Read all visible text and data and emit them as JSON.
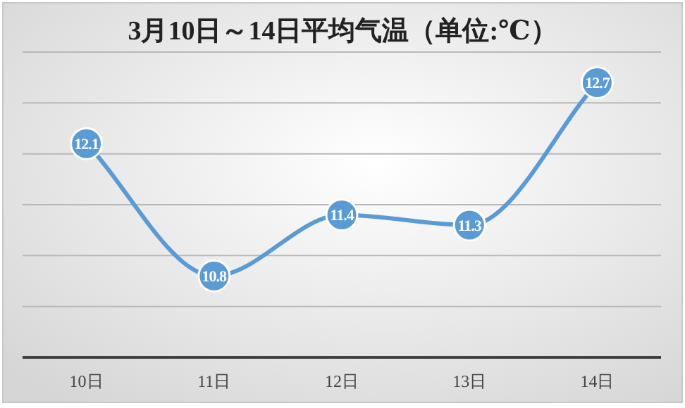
{
  "chart_data": {
    "type": "line",
    "title": "3月10日～14日平均气温（单位:℃）",
    "categories": [
      "10日",
      "11日",
      "12日",
      "13日",
      "14日"
    ],
    "series": [
      {
        "color": "#5b9bd5",
        "values": [
          12.1,
          10.8,
          11.4,
          11.3,
          12.7
        ]
      }
    ],
    "ylim": [
      10,
      13
    ],
    "yticks": [
      {
        "value": 10,
        "label": null
      },
      {
        "value": 10.5,
        "label": null
      },
      {
        "value": 11,
        "label": null
      },
      {
        "value": 11.5,
        "label": null
      },
      {
        "value": 12,
        "label": null
      },
      {
        "value": 12.5,
        "label": null
      },
      {
        "value": 13,
        "label": null
      }
    ],
    "grid": "y",
    "tick_labels": "x",
    "marker": "circle",
    "data_labels": true,
    "line_style": "solid"
  }
}
